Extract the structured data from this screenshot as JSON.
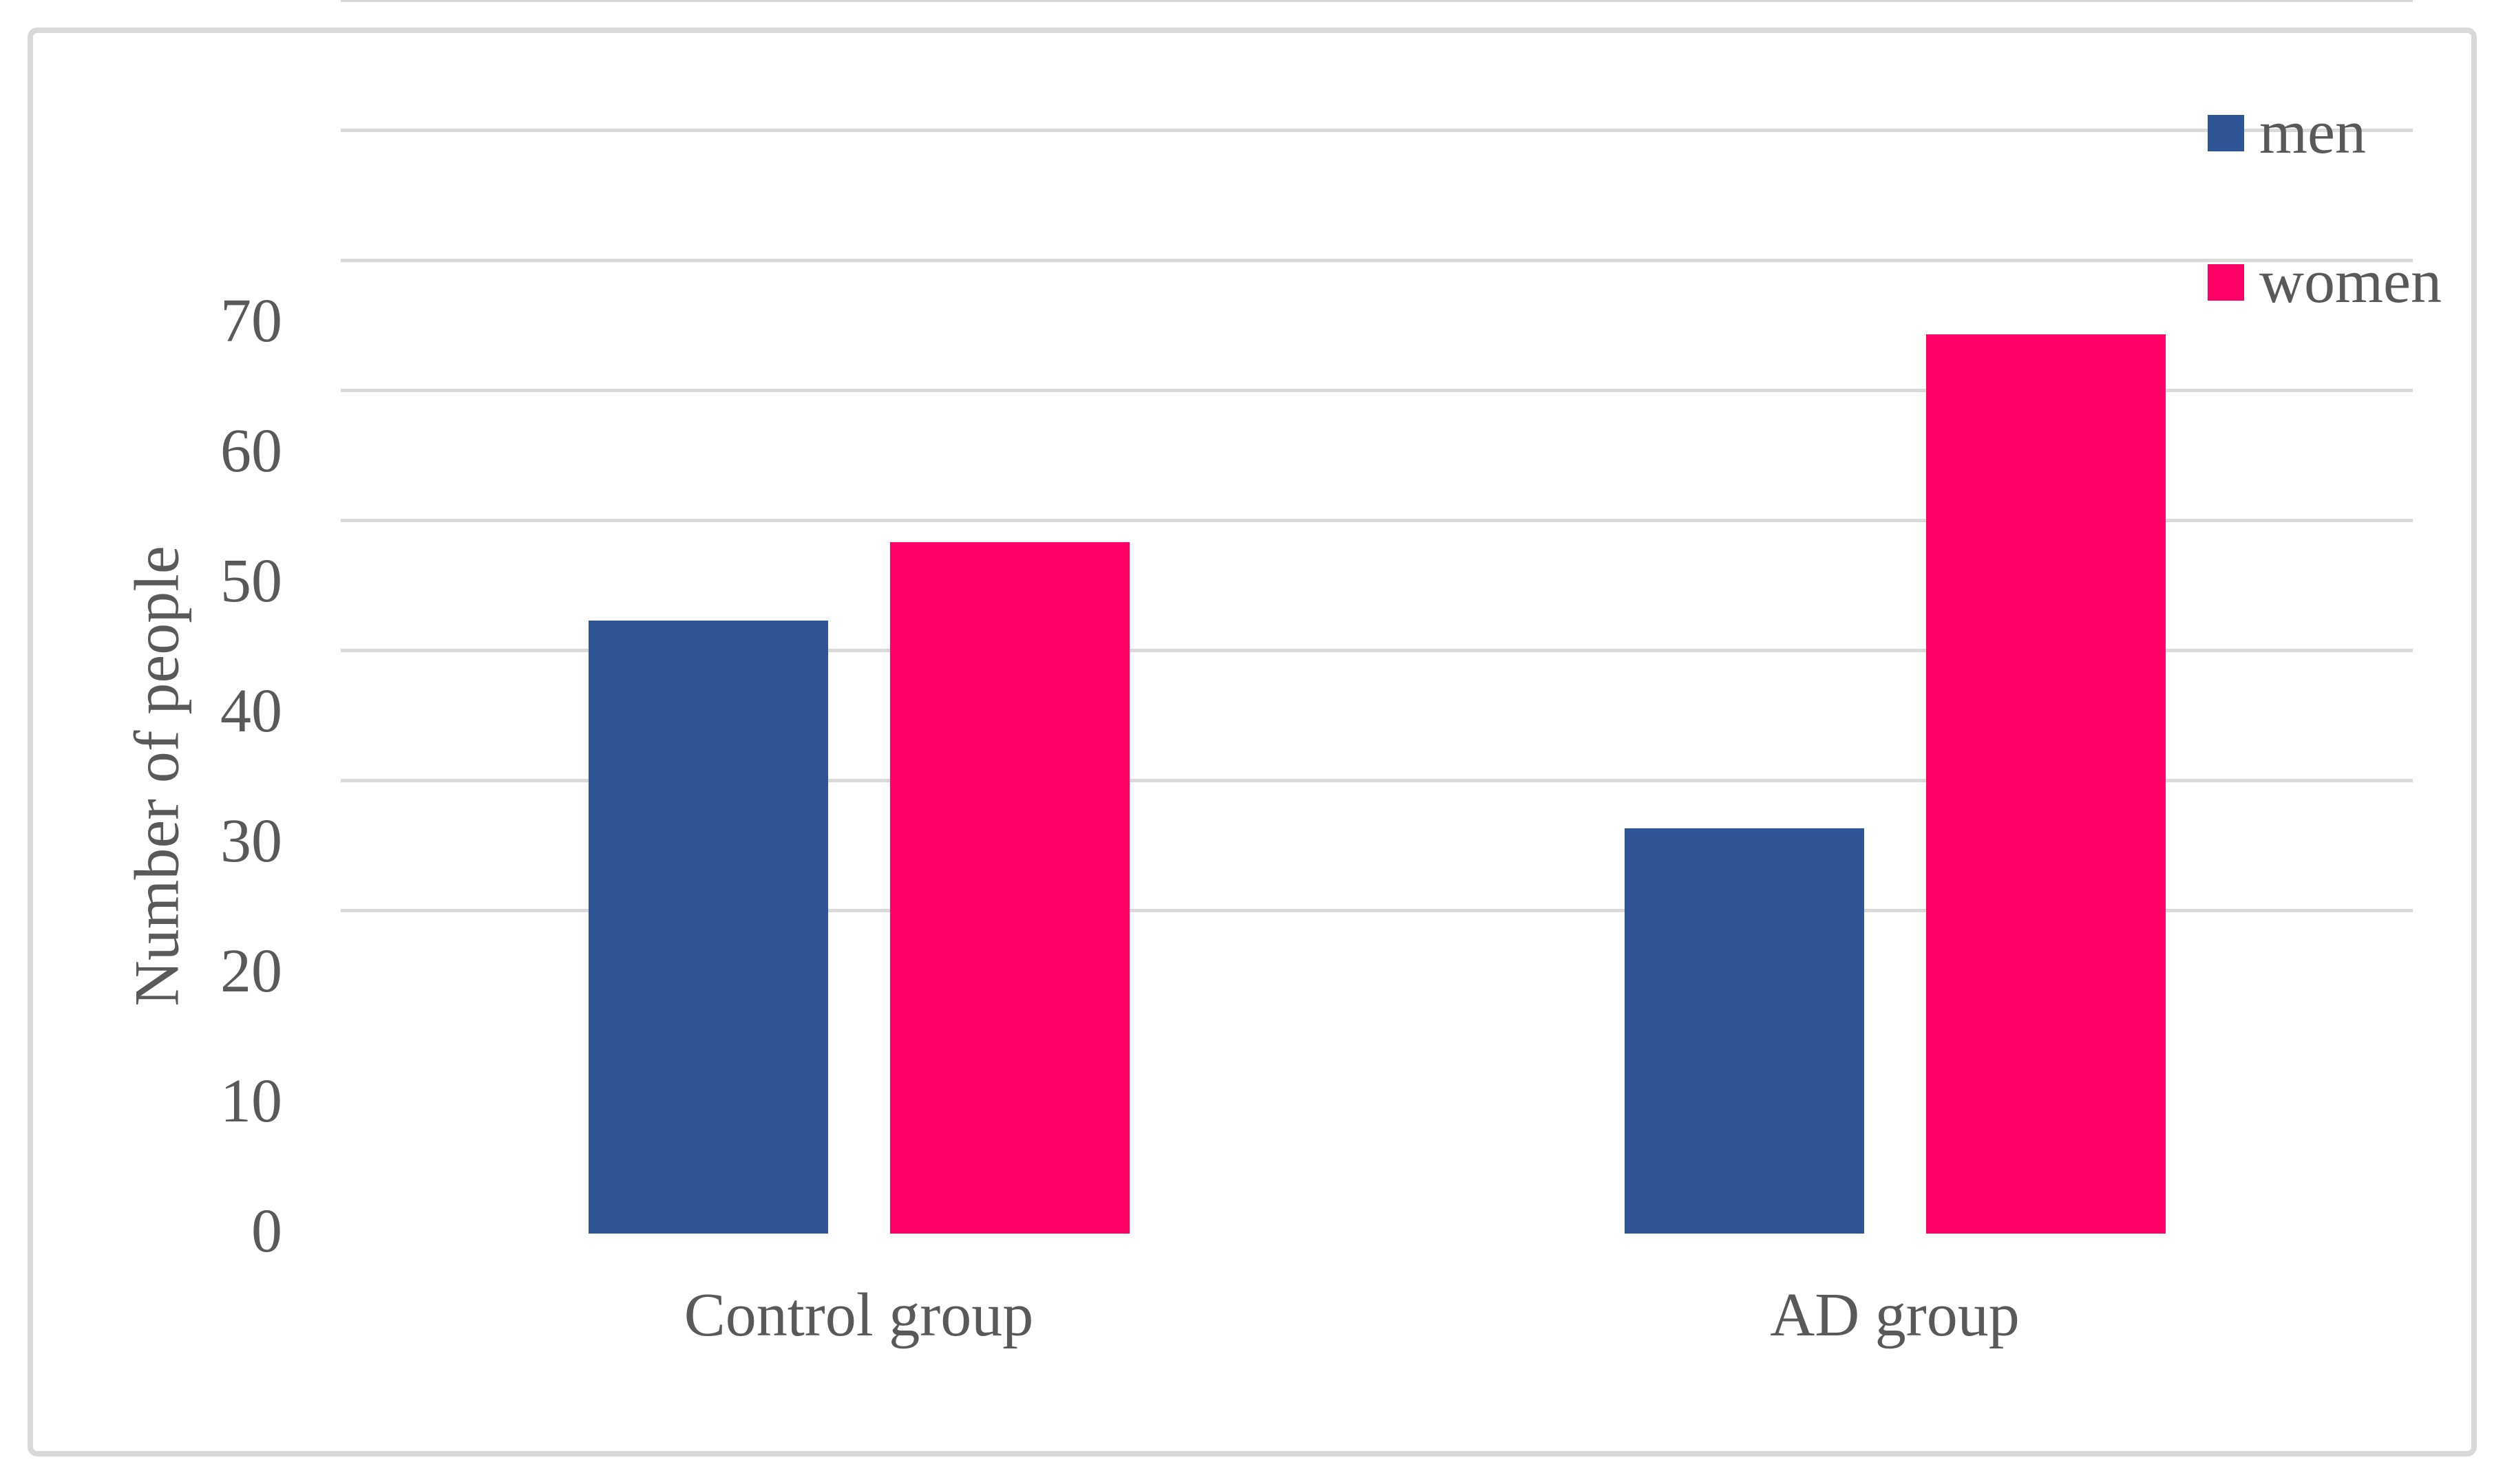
{
  "chart_data": {
    "type": "bar",
    "title": "",
    "categories": [
      "Control group",
      "AD group"
    ],
    "series": [
      {
        "name": "men",
        "color": "#2F5597",
        "values": [
          47,
          31
        ]
      },
      {
        "name": "women",
        "color": "#FF0066",
        "values": [
          53,
          69
        ]
      }
    ],
    "xlabel": "",
    "ylabel": "Number of people",
    "ylim": [
      0,
      70
    ],
    "yticks": [
      0,
      10,
      20,
      30,
      40,
      50,
      60,
      70
    ],
    "grid": "horizontal",
    "legend_position": "top-right",
    "colors": {
      "text": "#595959",
      "gridline": "#D9D9D9",
      "figure_border": "#D9D9D9",
      "background": "#FFFFFF"
    }
  }
}
